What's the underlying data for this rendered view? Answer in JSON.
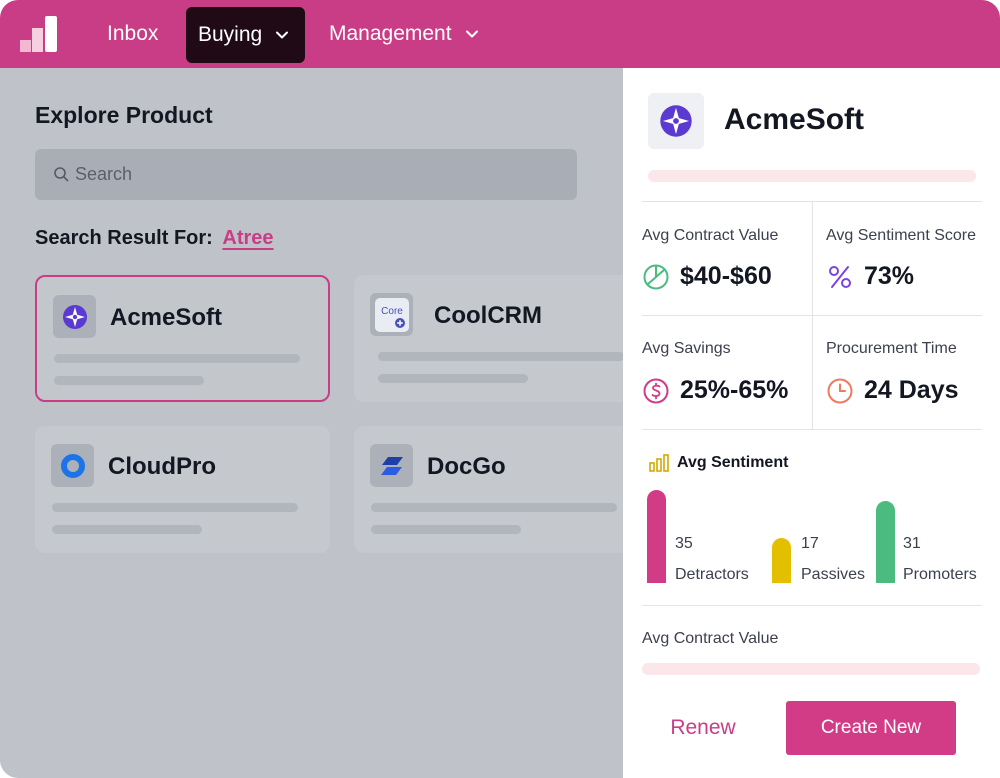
{
  "nav": {
    "logo_icon": "bar-chart-logo-icon",
    "items": [
      {
        "label": "Inbox",
        "active": false,
        "dropdown": false
      },
      {
        "label": "Buying",
        "active": true,
        "dropdown": true
      },
      {
        "label": "Management",
        "active": false,
        "dropdown": true
      }
    ]
  },
  "explore": {
    "title": "Explore Product",
    "search_placeholder": "Search",
    "result_prefix": "Search Result For:",
    "result_term": "Atree",
    "products": [
      {
        "name": "AcmeSoft",
        "icon": "compass-star-icon",
        "selected": true
      },
      {
        "name": "CoolCRM",
        "icon": "core-logo-icon",
        "logo_text": "Core",
        "selected": false
      },
      {
        "name": "CloudPro",
        "icon": "ring-logo-icon",
        "selected": false
      },
      {
        "name": "DocGo",
        "icon": "stripes-logo-icon",
        "selected": false
      }
    ]
  },
  "panel": {
    "product_name": "AcmeSoft",
    "metrics": [
      {
        "label": "Avg Contract Value",
        "value": "$40-$60",
        "icon": "pie-chart-icon"
      },
      {
        "label": "Avg Sentiment Score",
        "value": "73%",
        "icon": "percent-icon"
      },
      {
        "label": "Avg Savings",
        "value": "25%-65%",
        "icon": "dollar-circle-icon"
      },
      {
        "label": "Procurement Time",
        "value": "24 Days",
        "icon": "clock-icon"
      }
    ],
    "sentiment": {
      "title": "Avg Sentiment",
      "icon": "bar-chart-icon",
      "groups": [
        {
          "count": "35",
          "label": "Detractors",
          "value": 35,
          "color": "#d23b86"
        },
        {
          "count": "17",
          "label": "Passives",
          "value": 17,
          "color": "#e2c000"
        },
        {
          "count": "31",
          "label": "Promoters",
          "value": 31,
          "color": "#4cbb7f"
        }
      ]
    },
    "contract_section_label": "Avg Contract Value",
    "renew_label": "Renew",
    "create_label": "Create New"
  },
  "colors": {
    "brand": "#c93c86",
    "nav_active": "#1f0a16",
    "button": "#d23b86"
  }
}
